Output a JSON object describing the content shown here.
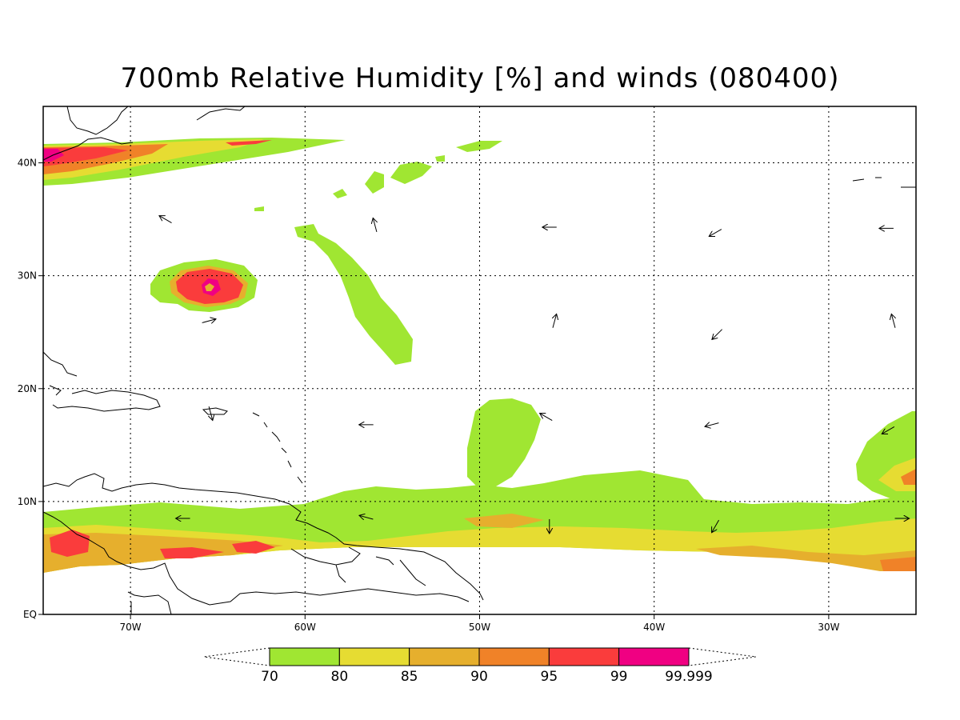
{
  "title": "700mb Relative Humidity [%] and winds (080400)",
  "map": {
    "lon_range": [
      -75,
      -25
    ],
    "lat_range": [
      0,
      45
    ],
    "gridlines": "dotted",
    "lon_ticks": [
      {
        "lon": -70,
        "label": "70W"
      },
      {
        "lon": -60,
        "label": "60W"
      },
      {
        "lon": -50,
        "label": "50W"
      },
      {
        "lon": -40,
        "label": "40W"
      },
      {
        "lon": -30,
        "label": "30W"
      }
    ],
    "lat_ticks": [
      {
        "lat": 0,
        "label": "EQ"
      },
      {
        "lat": 10,
        "label": "10N"
      },
      {
        "lat": 20,
        "label": "20N"
      },
      {
        "lat": 30,
        "label": "30N"
      },
      {
        "lat": 40,
        "label": "40N"
      }
    ]
  },
  "colorbar": {
    "levels": [
      "70",
      "80",
      "85",
      "90",
      "95",
      "99",
      "99.999"
    ],
    "colors": [
      "#a0e632",
      "#e6dc32",
      "#e6af2d",
      "#f08228",
      "#fa3c3c",
      "#f00082"
    ]
  },
  "wind_vectors": [
    {
      "lon": -68,
      "lat": 35,
      "dir": 300
    },
    {
      "lon": -56,
      "lat": 34.5,
      "dir": 345
    },
    {
      "lon": -46,
      "lat": 34.3,
      "dir": 270
    },
    {
      "lon": -36.5,
      "lat": 33.8,
      "dir": 240
    },
    {
      "lon": -26.7,
      "lat": 34.2,
      "dir": 270
    },
    {
      "lon": -65.5,
      "lat": 26,
      "dir": 75
    },
    {
      "lon": -45.7,
      "lat": 26,
      "dir": 15
    },
    {
      "lon": -36.4,
      "lat": 24.8,
      "dir": 225
    },
    {
      "lon": -26.3,
      "lat": 26,
      "dir": 345
    },
    {
      "lon": -56.5,
      "lat": 16.8,
      "dir": 270
    },
    {
      "lon": -46.2,
      "lat": 17.5,
      "dir": 300
    },
    {
      "lon": -36.7,
      "lat": 16.8,
      "dir": 255
    },
    {
      "lon": -26.6,
      "lat": 16.3,
      "dir": 240
    },
    {
      "lon": -65.4,
      "lat": 17.8,
      "dir": 165
    },
    {
      "lon": -56.5,
      "lat": 8.6,
      "dir": 285
    },
    {
      "lon": -46,
      "lat": 7.8,
      "dir": 180
    },
    {
      "lon": -36.5,
      "lat": 7.8,
      "dir": 210
    },
    {
      "lon": -25.8,
      "lat": 8.5,
      "dir": 90
    },
    {
      "lon": -67,
      "lat": 8.5,
      "dir": 270
    }
  ]
}
